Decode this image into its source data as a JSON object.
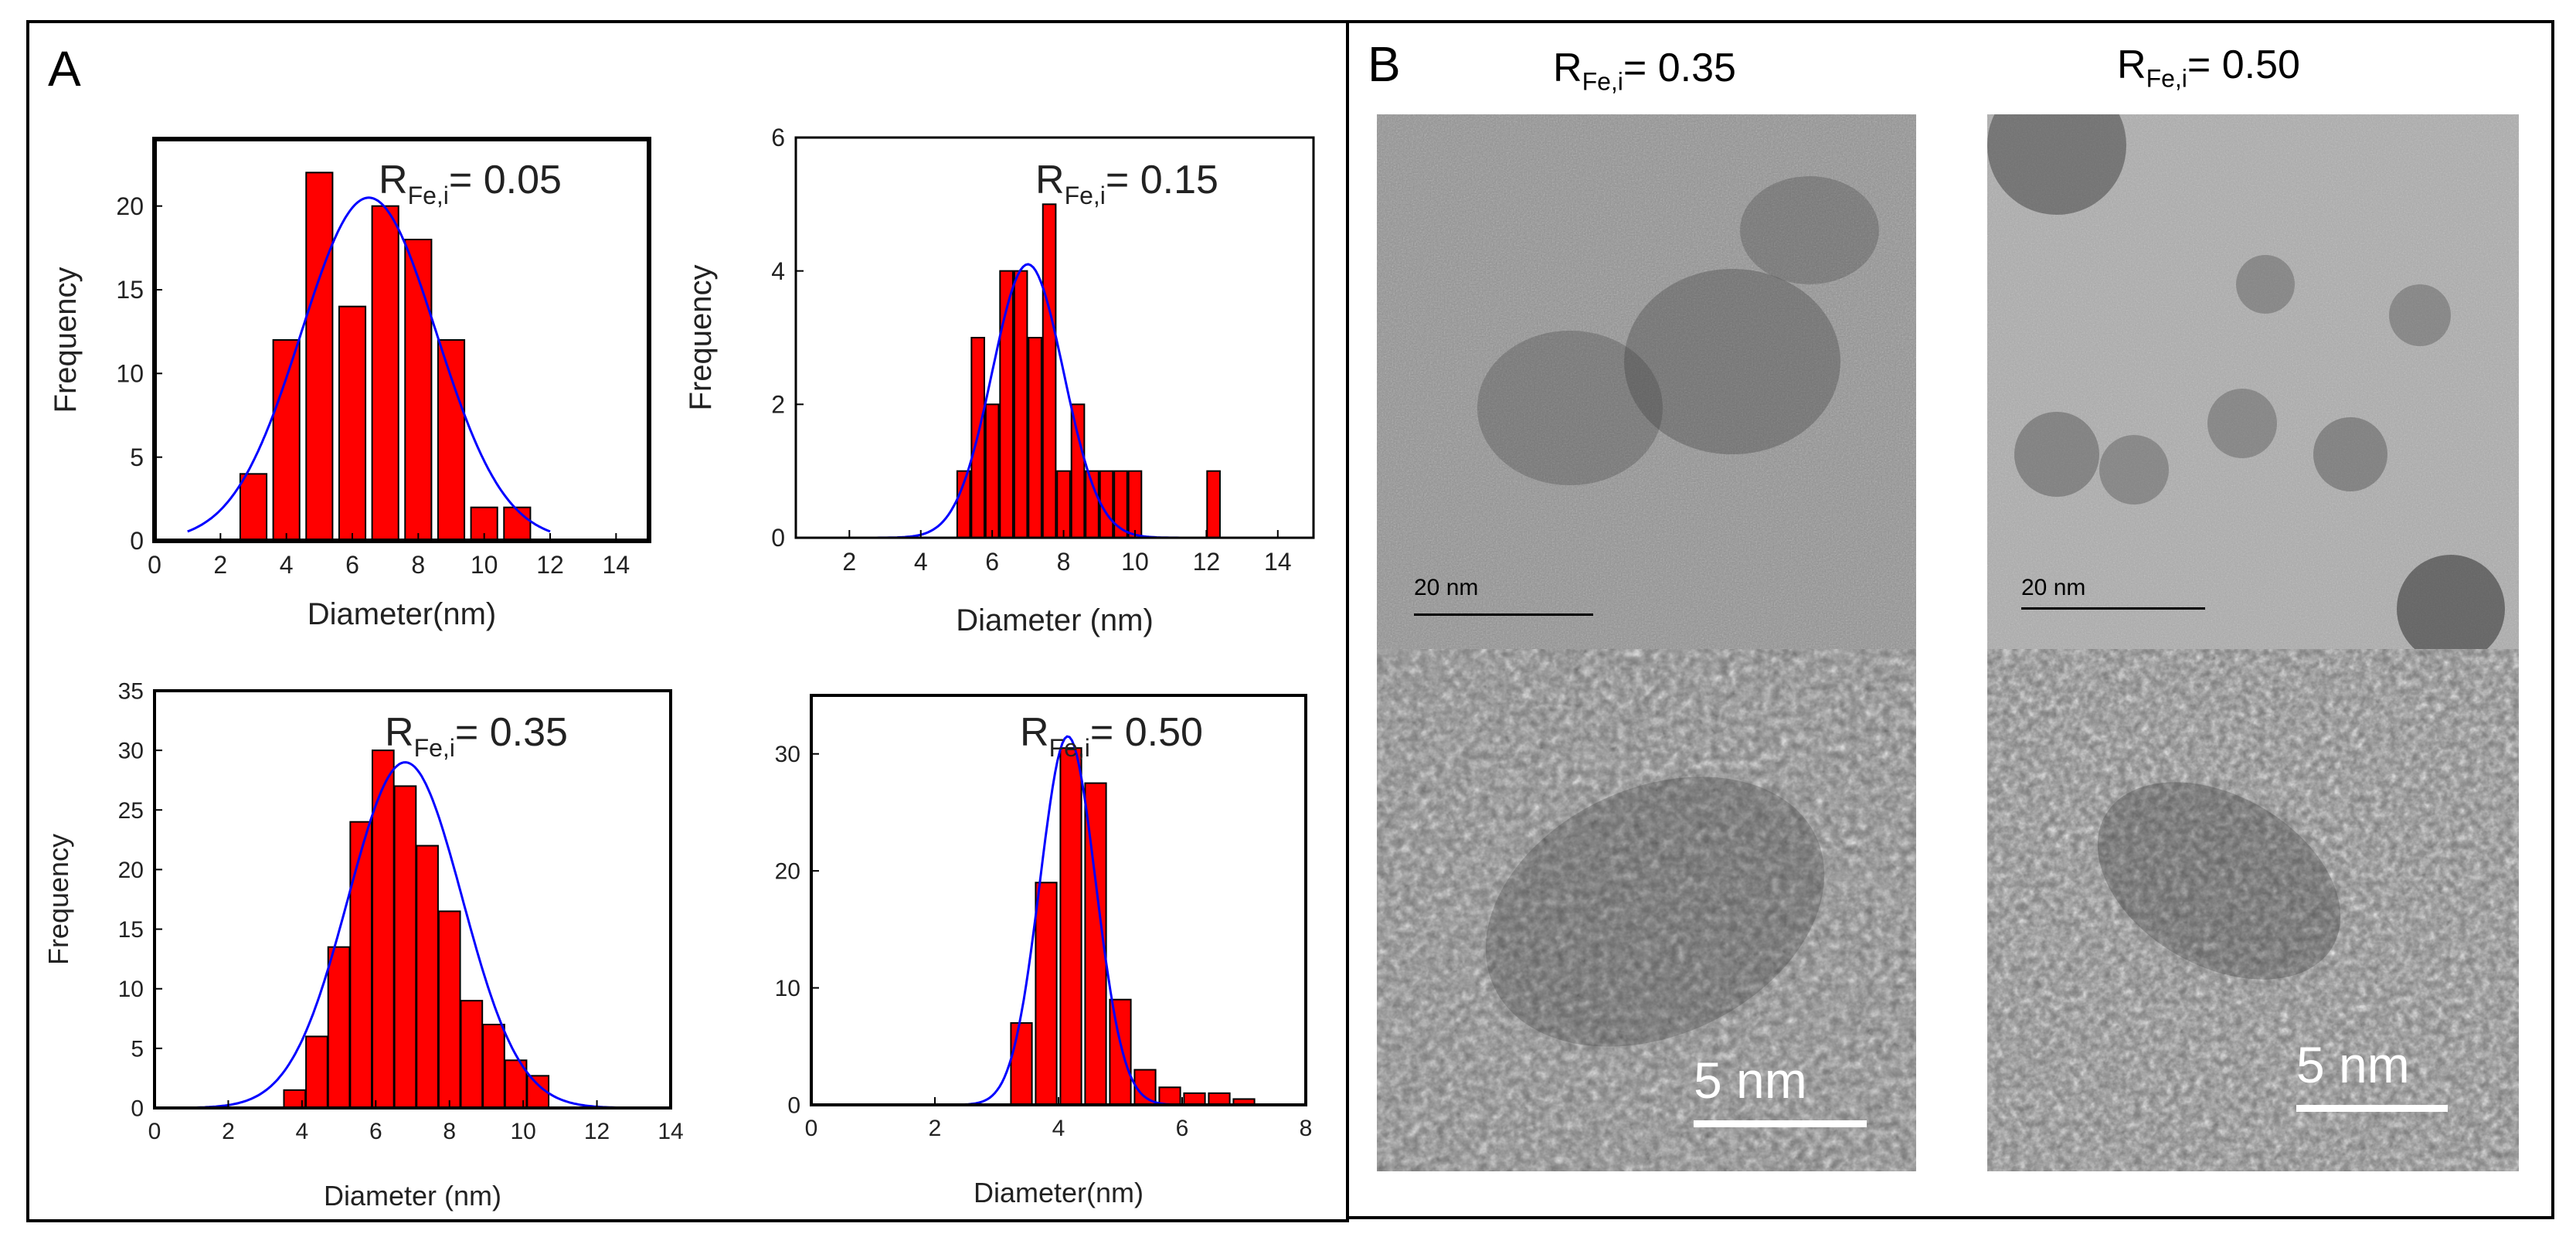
{
  "panels": {
    "a_label": "A",
    "b_label": "B"
  },
  "chart_data": [
    {
      "type": "bar",
      "id": "c1",
      "ratio_prefix": "R",
      "ratio_sub": "Fe,i",
      "ratio_value": "= 0.05",
      "xlabel": "Diameter(nm)",
      "ylabel": "Frequency",
      "xlim": [
        0,
        15
      ],
      "ylim": [
        0,
        24
      ],
      "xticks": [
        "0",
        "2",
        "4",
        "6",
        "8",
        "10",
        "12",
        "14"
      ],
      "yticks": [
        "0",
        "5",
        "10",
        "15",
        "20"
      ],
      "bin_width": 0.8,
      "bins": [
        {
          "x": 3,
          "y": 4
        },
        {
          "x": 4,
          "y": 12
        },
        {
          "x": 5,
          "y": 22
        },
        {
          "x": 6,
          "y": 14
        },
        {
          "x": 7,
          "y": 20
        },
        {
          "x": 8,
          "y": 18
        },
        {
          "x": 9,
          "y": 12
        },
        {
          "x": 10,
          "y": 2
        },
        {
          "x": 11,
          "y": 2
        }
      ],
      "fit": {
        "mean": 6.5,
        "sd": 2.05,
        "peak": 20.5,
        "xmin": 1.0,
        "xmax": 12.0
      }
    },
    {
      "type": "bar",
      "id": "c2",
      "ratio_prefix": "R",
      "ratio_sub": "Fe,i",
      "ratio_value": "= 0.15",
      "xlabel": "Diameter (nm)",
      "ylabel": "Frequency",
      "xlim": [
        0.5,
        15
      ],
      "ylim": [
        0,
        6
      ],
      "xticks": [
        "2",
        "4",
        "6",
        "8",
        "10",
        "12",
        "14"
      ],
      "yticks": [
        "0",
        "2",
        "4",
        "6"
      ],
      "bin_width": 0.36,
      "bins": [
        {
          "x": 5.2,
          "y": 1
        },
        {
          "x": 5.6,
          "y": 3
        },
        {
          "x": 6.0,
          "y": 2
        },
        {
          "x": 6.4,
          "y": 4
        },
        {
          "x": 6.8,
          "y": 4
        },
        {
          "x": 7.2,
          "y": 3
        },
        {
          "x": 7.6,
          "y": 5
        },
        {
          "x": 8.0,
          "y": 1
        },
        {
          "x": 8.4,
          "y": 2
        },
        {
          "x": 8.8,
          "y": 1
        },
        {
          "x": 9.2,
          "y": 1
        },
        {
          "x": 9.6,
          "y": 1
        },
        {
          "x": 10.0,
          "y": 1
        },
        {
          "x": 12.2,
          "y": 1
        }
      ],
      "fit": {
        "mean": 7.0,
        "sd": 1.0,
        "peak": 4.1,
        "xmin": 0.6,
        "xmax": 15.0
      }
    },
    {
      "type": "bar",
      "id": "c3",
      "ratio_prefix": "R",
      "ratio_sub": "Fe,i",
      "ratio_value": "= 0.35",
      "xlabel": "Diameter (nm)",
      "ylabel": "Frequency",
      "xlim": [
        0,
        14
      ],
      "ylim": [
        0,
        35
      ],
      "xticks": [
        "0",
        "2",
        "4",
        "6",
        "8",
        "10",
        "12",
        "14"
      ],
      "yticks": [
        "0",
        "5",
        "10",
        "15",
        "20",
        "25",
        "30",
        "35"
      ],
      "bin_width": 0.58,
      "bins": [
        {
          "x": 3.8,
          "y": 1.5
        },
        {
          "x": 4.4,
          "y": 6
        },
        {
          "x": 5.0,
          "y": 13.5
        },
        {
          "x": 5.6,
          "y": 24
        },
        {
          "x": 6.2,
          "y": 30
        },
        {
          "x": 6.8,
          "y": 27
        },
        {
          "x": 7.4,
          "y": 22
        },
        {
          "x": 8.0,
          "y": 16.5
        },
        {
          "x": 8.6,
          "y": 9
        },
        {
          "x": 9.2,
          "y": 7
        },
        {
          "x": 9.8,
          "y": 4
        },
        {
          "x": 10.4,
          "y": 2.7
        }
      ],
      "fit": {
        "mean": 6.8,
        "sd": 1.55,
        "peak": 29,
        "xmin": 1.0,
        "xmax": 13.0
      }
    },
    {
      "type": "bar",
      "id": "c4",
      "ratio_prefix": "R",
      "ratio_sub": "Fe,i",
      "ratio_value": "= 0.50",
      "xlabel": "Diameter(nm)",
      "ylabel": "",
      "xlim": [
        0,
        8
      ],
      "ylim": [
        0,
        35
      ],
      "xticks": [
        "0",
        "2",
        "4",
        "6",
        "8"
      ],
      "yticks": [
        "0",
        "10",
        "20",
        "30"
      ],
      "bin_width": 0.34,
      "bins": [
        {
          "x": 3.4,
          "y": 7
        },
        {
          "x": 3.8,
          "y": 19
        },
        {
          "x": 4.2,
          "y": 30.5
        },
        {
          "x": 4.6,
          "y": 27.5
        },
        {
          "x": 5.0,
          "y": 9
        },
        {
          "x": 5.4,
          "y": 3
        },
        {
          "x": 5.8,
          "y": 1.5
        },
        {
          "x": 6.2,
          "y": 1
        },
        {
          "x": 6.6,
          "y": 1
        },
        {
          "x": 7.0,
          "y": 0.5
        }
      ],
      "fit": {
        "mean": 4.15,
        "sd": 0.45,
        "peak": 31.5,
        "xmin": 0.2,
        "xmax": 8.0
      }
    }
  ],
  "tem": {
    "left_title_prefix": "R",
    "left_title_sub": "Fe,i",
    "left_title_value": "= 0.35",
    "right_title_prefix": "R",
    "right_title_sub": "Fe,i",
    "right_title_value": "= 0.50",
    "scale_top_left": "20  nm",
    "scale_top_right": "20  nm",
    "scale_bottom_left": "5 nm",
    "scale_bottom_right": "5 nm"
  },
  "colors": {
    "bar_fill": "#ff0000",
    "bar_edge": "#000000",
    "fit_line": "#0000ff",
    "frame": "#000000"
  }
}
